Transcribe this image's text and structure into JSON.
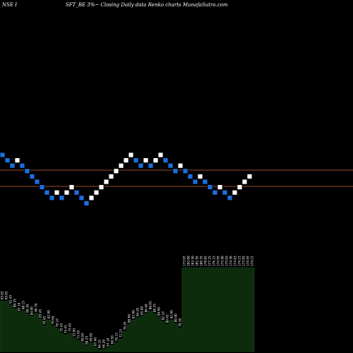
{
  "header": {
    "left": "NSE I",
    "center": "SFT_BE 3%~  Closing Daily data  Renko  charts MunafaSutra.com"
  },
  "colors": {
    "background": "#000000",
    "up_brick": "#ffffff",
    "down_brick": "#1a6fe0",
    "brick_border": "#000000",
    "line_upper": "#9a4a2a",
    "line_lower": "#9a4a2a",
    "area_fill": "#0c2c0c",
    "area_stroke": "#1c4a1c",
    "label_color": "#ffffff"
  },
  "chart_data": {
    "type": "renko",
    "bricks": [
      {
        "dir": "down",
        "level": 0
      },
      {
        "dir": "down",
        "level": -1
      },
      {
        "dir": "down",
        "level": -2
      },
      {
        "dir": "up",
        "level": -1
      },
      {
        "dir": "down",
        "level": -2
      },
      {
        "dir": "down",
        "level": -3
      },
      {
        "dir": "down",
        "level": -4
      },
      {
        "dir": "down",
        "level": -5
      },
      {
        "dir": "down",
        "level": -6
      },
      {
        "dir": "down",
        "level": -7
      },
      {
        "dir": "down",
        "level": -8
      },
      {
        "dir": "up",
        "level": -7
      },
      {
        "dir": "down",
        "level": -8
      },
      {
        "dir": "up",
        "level": -7
      },
      {
        "dir": "up",
        "level": -6
      },
      {
        "dir": "down",
        "level": -7
      },
      {
        "dir": "down",
        "level": -8
      },
      {
        "dir": "down",
        "level": -9
      },
      {
        "dir": "up",
        "level": -8
      },
      {
        "dir": "up",
        "level": -7
      },
      {
        "dir": "up",
        "level": -6
      },
      {
        "dir": "up",
        "level": -5
      },
      {
        "dir": "up",
        "level": -4
      },
      {
        "dir": "up",
        "level": -3
      },
      {
        "dir": "up",
        "level": -2
      },
      {
        "dir": "up",
        "level": -1
      },
      {
        "dir": "up",
        "level": 0
      },
      {
        "dir": "down",
        "level": -1
      },
      {
        "dir": "down",
        "level": -2
      },
      {
        "dir": "up",
        "level": -1
      },
      {
        "dir": "down",
        "level": -2
      },
      {
        "dir": "up",
        "level": -1
      },
      {
        "dir": "up",
        "level": 0
      },
      {
        "dir": "down",
        "level": -1
      },
      {
        "dir": "down",
        "level": -2
      },
      {
        "dir": "down",
        "level": -3
      },
      {
        "dir": "up",
        "level": -2
      },
      {
        "dir": "down",
        "level": -3
      },
      {
        "dir": "down",
        "level": -4
      },
      {
        "dir": "down",
        "level": -5
      },
      {
        "dir": "up",
        "level": -4
      },
      {
        "dir": "down",
        "level": -5
      },
      {
        "dir": "down",
        "level": -6
      },
      {
        "dir": "down",
        "level": -7
      },
      {
        "dir": "up",
        "level": -6
      },
      {
        "dir": "down",
        "level": -7
      },
      {
        "dir": "down",
        "level": -8
      },
      {
        "dir": "up",
        "level": -7
      },
      {
        "dir": "up",
        "level": -6
      },
      {
        "dir": "up",
        "level": -5
      },
      {
        "dir": "up",
        "level": -4
      }
    ],
    "reference_lines": [
      "upper",
      "lower"
    ],
    "area_labels": [
      "93.65",
      "93.65",
      "91.45",
      "89.35",
      "87.10",
      "88.15",
      "86.30",
      "84.90",
      "86.70",
      "83.45",
      "79.45",
      "82.90",
      "79.60",
      "78.10",
      "75.45",
      "74.45",
      "75.45",
      "72.60",
      "71.45",
      "69.95",
      "68.25",
      "69.95",
      "67.40",
      "66.10",
      "66.20",
      "67.10",
      "68.50",
      "70.15",
      "72.15",
      "76.45",
      "80.60",
      "82.90",
      "84.20",
      "85.00",
      "86.40",
      "88.05",
      "86.55",
      "84.60",
      "82.10",
      "80.45",
      "82.90",
      "80.90",
      "78.30",
      "173.97",
      "185.00",
      "183.50",
      "181.95",
      "180.35",
      "178.85",
      "177.25",
      "176.15",
      "174.95",
      "175.90",
      "175.03",
      "174.36",
      "174.03",
      "174.21",
      "173.95",
      "174.93",
      "174.21"
    ]
  }
}
